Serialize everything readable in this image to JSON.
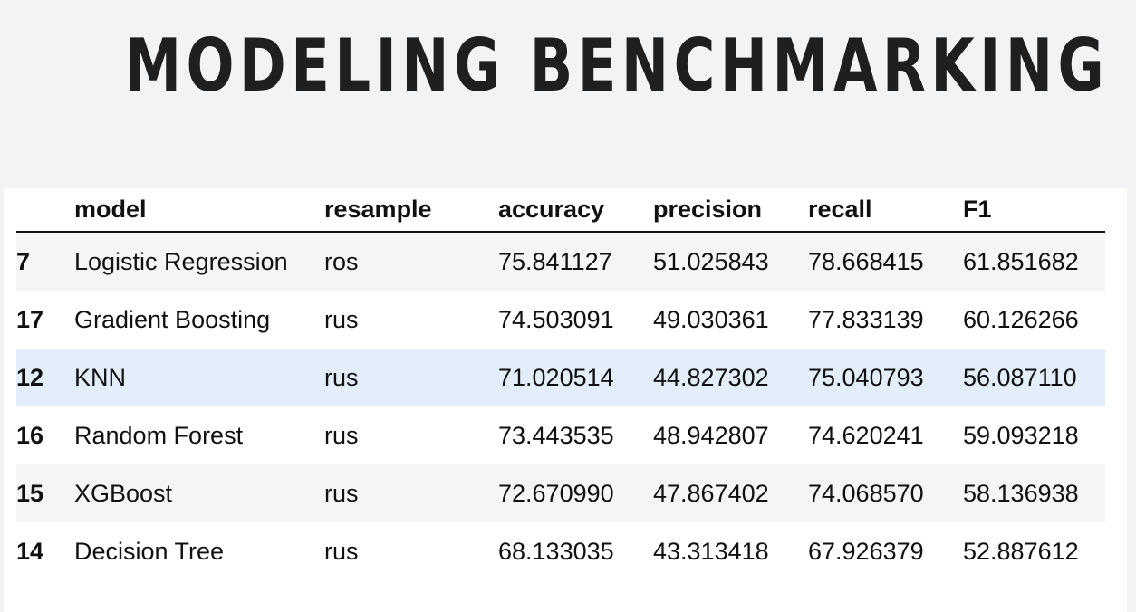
{
  "title": "MODELING BENCHMARKING",
  "table": {
    "columns": [
      "model",
      "resample",
      "accuracy",
      "precision",
      "recall",
      "F1"
    ],
    "rows": [
      {
        "index": "7",
        "model": "Logistic Regression",
        "resample": "ros",
        "accuracy": "75.841127",
        "precision": "51.025843",
        "recall": "78.668415",
        "f1": "61.851682"
      },
      {
        "index": "17",
        "model": "Gradient Boosting",
        "resample": "rus",
        "accuracy": "74.503091",
        "precision": "49.030361",
        "recall": "77.833139",
        "f1": "60.126266"
      },
      {
        "index": "12",
        "model": "KNN",
        "resample": "rus",
        "accuracy": "71.020514",
        "precision": "44.827302",
        "recall": "75.040793",
        "f1": "56.087110"
      },
      {
        "index": "16",
        "model": "Random Forest",
        "resample": "rus",
        "accuracy": "73.443535",
        "precision": "48.942807",
        "recall": "74.620241",
        "f1": "59.093218"
      },
      {
        "index": "15",
        "model": "XGBoost",
        "resample": "rus",
        "accuracy": "72.670990",
        "precision": "47.867402",
        "recall": "74.068570",
        "f1": "58.136938"
      },
      {
        "index": "14",
        "model": "Decision Tree",
        "resample": "rus",
        "accuracy": "68.133035",
        "precision": "43.313418",
        "recall": "67.926379",
        "f1": "52.887612"
      }
    ]
  },
  "colors": {
    "background": "#f2f3f5",
    "highlight_row": "#e3eefa",
    "stripe_row": "#f5f5f5",
    "text": "#111111"
  }
}
